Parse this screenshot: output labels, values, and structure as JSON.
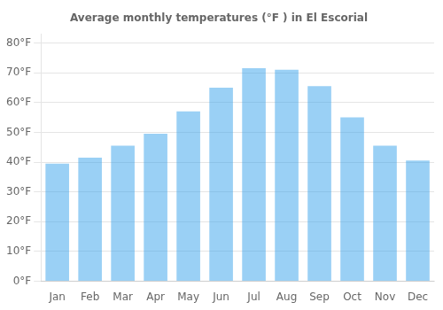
{
  "chart_data": {
    "type": "bar",
    "title": "Average monthly temperatures (°F ) in El Escorial",
    "categories": [
      "Jan",
      "Feb",
      "Mar",
      "Apr",
      "May",
      "Jun",
      "Jul",
      "Aug",
      "Sep",
      "Oct",
      "Nov",
      "Dec"
    ],
    "values": [
      39.5,
      41.5,
      45.5,
      49.5,
      57.0,
      65.0,
      71.5,
      71.0,
      65.5,
      55.0,
      45.5,
      40.5
    ],
    "ylim": [
      0,
      83
    ],
    "yticks": [
      {
        "value": 0,
        "label": "0°F"
      },
      {
        "value": 10,
        "label": "10°F"
      },
      {
        "value": 20,
        "label": "20°F"
      },
      {
        "value": 30,
        "label": "30°F"
      },
      {
        "value": 40,
        "label": "40°F"
      },
      {
        "value": 50,
        "label": "50°F"
      },
      {
        "value": 60,
        "label": "60°F"
      },
      {
        "value": 70,
        "label": "70°F"
      },
      {
        "value": 80,
        "label": "80°F"
      }
    ],
    "grid": true
  }
}
